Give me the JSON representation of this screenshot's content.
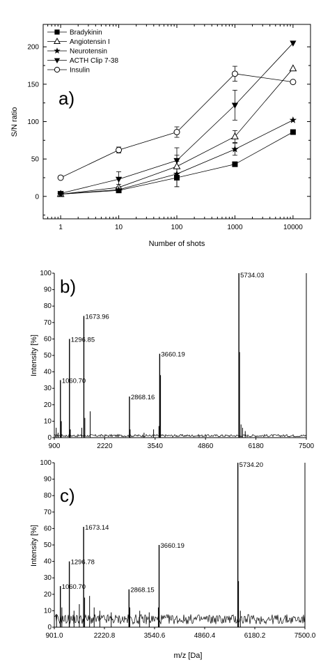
{
  "chart_data": [
    {
      "type": "line",
      "panel_label": "a)",
      "xlabel": "Number of shots",
      "ylabel": "S/N ratio",
      "x_scale": "log",
      "xlim": [
        0.5,
        20000
      ],
      "ylim": [
        -30,
        230
      ],
      "x_ticks": [
        1,
        10,
        100,
        1000,
        10000
      ],
      "x_tick_labels": [
        "1",
        "10",
        "100",
        "1000",
        "10000"
      ],
      "y_ticks": [
        0,
        50,
        100,
        150,
        200
      ],
      "y_tick_labels": [
        "0",
        "50",
        "100",
        "150",
        "200"
      ],
      "legend_position": "top-left",
      "x": [
        1,
        10,
        100,
        1000,
        10000
      ],
      "series": [
        {
          "name": "Bradykinin",
          "marker": "square-filled",
          "values": [
            3,
            8,
            25,
            43,
            86
          ],
          "errors": [
            0,
            2,
            12,
            0,
            0
          ]
        },
        {
          "name": "Angiotensin I",
          "marker": "triangle-up-open",
          "values": [
            3,
            12,
            40,
            80,
            171
          ],
          "errors": [
            0,
            4,
            15,
            8,
            0
          ]
        },
        {
          "name": "Neurotensin",
          "marker": "star-filled",
          "values": [
            3,
            9,
            30,
            63,
            102
          ],
          "errors": [
            0,
            2,
            17,
            8,
            0
          ]
        },
        {
          "name": "ACTH Clip 7-38",
          "marker": "triangle-down-filled",
          "values": [
            4,
            23,
            48,
            122,
            205
          ],
          "errors": [
            0,
            10,
            17,
            20,
            0
          ]
        },
        {
          "name": "Insulin",
          "marker": "circle-open",
          "values": [
            25,
            62,
            86,
            164,
            153
          ],
          "errors": [
            0,
            4,
            7,
            10,
            0
          ]
        }
      ]
    },
    {
      "type": "spectrum",
      "panel_label": "b)",
      "ylabel": "Intensity [%]",
      "xlim": [
        900,
        7500
      ],
      "ylim": [
        0,
        100
      ],
      "x_ticks": [
        900,
        2220,
        3540,
        4860,
        6180,
        7500
      ],
      "x_tick_labels": [
        "900",
        "2220",
        "3540",
        "4860",
        "6180",
        "7500"
      ],
      "y_ticks": [
        0,
        10,
        20,
        30,
        40,
        50,
        60,
        70,
        80,
        90,
        100
      ],
      "y_tick_labels": [
        "0",
        "10",
        "20",
        "30",
        "40",
        "50",
        "60",
        "70",
        "80",
        "90",
        "100"
      ],
      "peaks": [
        {
          "mz": 1060.7,
          "intensity": 35,
          "label": "1060.70"
        },
        {
          "mz": 1296.85,
          "intensity": 60,
          "label": "1296.85"
        },
        {
          "mz": 1673.96,
          "intensity": 74,
          "label": "1673.96"
        },
        {
          "mz": 2868.16,
          "intensity": 25,
          "label": "2868.16"
        },
        {
          "mz": 3660.19,
          "intensity": 51,
          "label": "3660.19"
        },
        {
          "mz": 5734.03,
          "intensity": 100,
          "label": "5734.03"
        }
      ],
      "minor_peaks": [
        {
          "mz": 950,
          "intensity": 6
        },
        {
          "mz": 1000,
          "intensity": 3
        },
        {
          "mz": 1085,
          "intensity": 10
        },
        {
          "mz": 1320,
          "intensity": 5
        },
        {
          "mz": 1620,
          "intensity": 6
        },
        {
          "mz": 1700,
          "intensity": 12
        },
        {
          "mz": 1840,
          "intensity": 16
        },
        {
          "mz": 2885,
          "intensity": 5
        },
        {
          "mz": 3250,
          "intensity": 3
        },
        {
          "mz": 3500,
          "intensity": 5
        },
        {
          "mz": 3640,
          "intensity": 7
        },
        {
          "mz": 3682,
          "intensity": 38
        },
        {
          "mz": 5752,
          "intensity": 52
        },
        {
          "mz": 5790,
          "intensity": 8
        },
        {
          "mz": 5830,
          "intensity": 6
        },
        {
          "mz": 5900,
          "intensity": 4
        },
        {
          "mz": 7500,
          "intensity": 100
        }
      ],
      "noise_level": 1.5
    },
    {
      "type": "spectrum",
      "panel_label": "c)",
      "xlabel": "m/z [Da]",
      "ylabel": "Intensity [%]",
      "xlim": [
        901,
        7500
      ],
      "ylim": [
        0,
        100
      ],
      "x_ticks": [
        901.0,
        2220.8,
        3540.6,
        4860.4,
        6180.2,
        7500.0
      ],
      "x_tick_labels": [
        "901.0",
        "2220.8",
        "3540.6",
        "4860.4",
        "6180.2",
        "7500.0"
      ],
      "y_ticks": [
        0,
        10,
        20,
        30,
        40,
        50,
        60,
        70,
        80,
        90,
        100
      ],
      "y_tick_labels": [
        "0",
        "10",
        "20",
        "30",
        "40",
        "50",
        "60",
        "70",
        "80",
        "90",
        "100"
      ],
      "peaks": [
        {
          "mz": 1060.7,
          "intensity": 25,
          "label": "1060.70"
        },
        {
          "mz": 1296.78,
          "intensity": 40,
          "label": "1296.78"
        },
        {
          "mz": 1673.14,
          "intensity": 61,
          "label": "1673.14"
        },
        {
          "mz": 2868.15,
          "intensity": 23,
          "label": "2868.15"
        },
        {
          "mz": 3660.19,
          "intensity": 50,
          "label": "3660.19"
        },
        {
          "mz": 5734.2,
          "intensity": 100,
          "label": "5734.20"
        }
      ],
      "minor_peaks": [
        {
          "mz": 960,
          "intensity": 8
        },
        {
          "mz": 1100,
          "intensity": 12
        },
        {
          "mz": 1420,
          "intensity": 10
        },
        {
          "mz": 1560,
          "intensity": 14
        },
        {
          "mz": 1700,
          "intensity": 18
        },
        {
          "mz": 1830,
          "intensity": 19
        },
        {
          "mz": 1950,
          "intensity": 12
        },
        {
          "mz": 2100,
          "intensity": 10
        },
        {
          "mz": 2400,
          "intensity": 9
        },
        {
          "mz": 2890,
          "intensity": 12
        },
        {
          "mz": 3150,
          "intensity": 10
        },
        {
          "mz": 3400,
          "intensity": 9
        },
        {
          "mz": 3640,
          "intensity": 12
        },
        {
          "mz": 5752,
          "intensity": 28
        },
        {
          "mz": 5800,
          "intensity": 10
        },
        {
          "mz": 7500,
          "intensity": 100
        }
      ],
      "noise_level": 6
    }
  ]
}
